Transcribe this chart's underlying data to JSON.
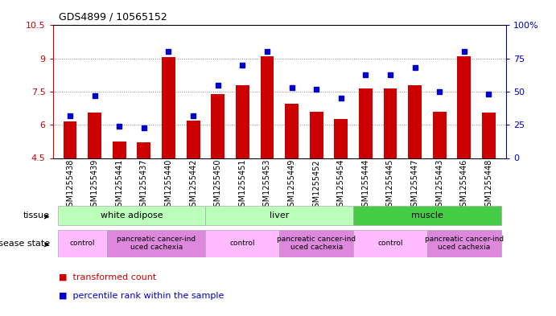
{
  "title": "GDS4899 / 10565152",
  "samples": [
    "GSM1255438",
    "GSM1255439",
    "GSM1255441",
    "GSM1255437",
    "GSM1255440",
    "GSM1255442",
    "GSM1255450",
    "GSM1255451",
    "GSM1255453",
    "GSM1255449",
    "GSM1255452",
    "GSM1255454",
    "GSM1255444",
    "GSM1255445",
    "GSM1255447",
    "GSM1255443",
    "GSM1255446",
    "GSM1255448"
  ],
  "transformed_count": [
    6.15,
    6.55,
    5.25,
    5.2,
    9.05,
    6.2,
    7.4,
    7.8,
    9.1,
    6.95,
    6.6,
    6.25,
    7.65,
    7.65,
    7.8,
    6.6,
    9.1,
    6.55
  ],
  "percentile_rank": [
    32,
    47,
    24,
    23,
    80,
    32,
    55,
    70,
    80,
    53,
    52,
    45,
    63,
    63,
    68,
    50,
    80,
    48
  ],
  "bar_color": "#cc0000",
  "dot_color": "#0000cc",
  "ylim_left": [
    4.5,
    10.5
  ],
  "ylim_right": [
    0,
    100
  ],
  "yticks_left": [
    4.5,
    6.0,
    7.5,
    9.0,
    10.5
  ],
  "yticks_right": [
    0,
    25,
    50,
    75,
    100
  ],
  "ytick_labels_left": [
    "4.5",
    "6",
    "7.5",
    "9",
    "10.5"
  ],
  "ytick_labels_right": [
    "0",
    "25",
    "50",
    "75",
    "100%"
  ],
  "tissue_groups": [
    {
      "label": "white adipose",
      "start": 0,
      "end": 5,
      "color": "#bbffbb"
    },
    {
      "label": "liver",
      "start": 6,
      "end": 11,
      "color": "#bbffbb"
    },
    {
      "label": "muscle",
      "start": 12,
      "end": 17,
      "color": "#44dd44"
    }
  ],
  "disease_groups": [
    {
      "label": "control",
      "start": 0,
      "end": 1,
      "color": "#ffbbff"
    },
    {
      "label": "pancreatic cancer-ind\nuced cachexia",
      "start": 2,
      "end": 5,
      "color": "#ee88ee"
    },
    {
      "label": "control",
      "start": 6,
      "end": 8,
      "color": "#ffbbff"
    },
    {
      "label": "pancreatic cancer-ind\nuced cachexia",
      "start": 9,
      "end": 11,
      "color": "#ee88ee"
    },
    {
      "label": "control",
      "start": 12,
      "end": 14,
      "color": "#ffbbff"
    },
    {
      "label": "pancreatic cancer-ind\nuced cachexia",
      "start": 15,
      "end": 17,
      "color": "#ee88ee"
    }
  ],
  "background_color": "#ffffff",
  "grid_color": "#888888",
  "tissue_row_label": "tissue",
  "disease_row_label": "disease state",
  "legend_items": [
    {
      "label": "transformed count",
      "color": "#cc0000"
    },
    {
      "label": "percentile rank within the sample",
      "color": "#0000cc"
    }
  ]
}
